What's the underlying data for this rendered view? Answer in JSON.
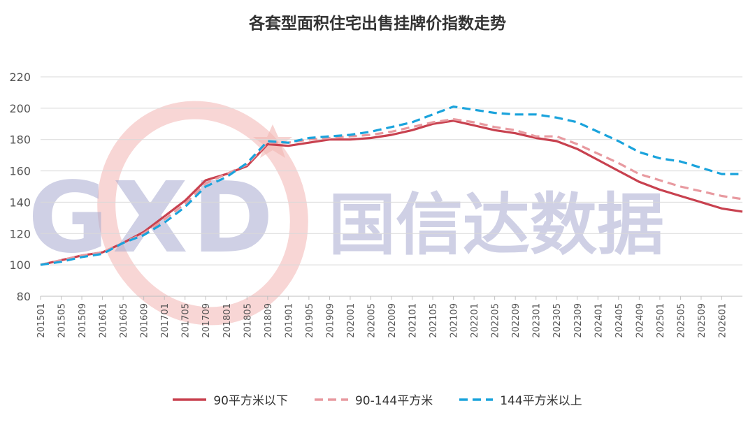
{
  "chart_data": {
    "type": "line",
    "title": "各套型面积住宅出售挂牌价指数走势",
    "xlabel": "",
    "ylabel": "",
    "ylim": [
      80,
      220
    ],
    "yticks": [
      80,
      100,
      120,
      140,
      160,
      180,
      200,
      220
    ],
    "grid": "horizontal",
    "legend_position": "bottom",
    "x_tick_labels": [
      "201501",
      "201505",
      "201509",
      "201601",
      "201605",
      "201609",
      "201701",
      "201705",
      "201709",
      "201801",
      "201805",
      "201809",
      "201901",
      "201905",
      "201909",
      "202001",
      "202005",
      "202009",
      "202101",
      "202105",
      "202109",
      "202201",
      "202205",
      "202209",
      "202301",
      "202305",
      "202309",
      "202401",
      "202405",
      "202409",
      "202501",
      "202505",
      "202509",
      "202601"
    ],
    "x": [
      "201501",
      "201505",
      "201509",
      "201601",
      "201605",
      "201609",
      "201701",
      "201705",
      "201709",
      "201801",
      "201805",
      "201809",
      "201901",
      "201905",
      "201909",
      "202001",
      "202005",
      "202009",
      "202101",
      "202105",
      "202109",
      "202201",
      "202205",
      "202209",
      "202301",
      "202305",
      "202309",
      "202401",
      "202405",
      "202409",
      "202501",
      "202505",
      "202509",
      "202601",
      "202602"
    ],
    "series": [
      {
        "name": "90平方米以下",
        "color": "#c8414f",
        "style": "solid",
        "values": [
          100,
          103,
          106,
          108,
          114,
          121,
          131,
          141,
          154,
          158,
          163,
          177,
          176,
          178,
          180,
          180,
          181,
          183,
          186,
          190,
          192,
          189,
          186,
          184,
          181,
          179,
          174,
          167,
          160,
          153,
          148,
          144,
          140,
          136,
          134
        ]
      },
      {
        "name": "90-144平方米",
        "color": "#e89aa0",
        "style": "dashed",
        "values": [
          100,
          103,
          106,
          108,
          114,
          120,
          129,
          139,
          152,
          158,
          164,
          178,
          178,
          180,
          181,
          182,
          183,
          185,
          188,
          191,
          193,
          191,
          188,
          186,
          182,
          182,
          177,
          171,
          165,
          158,
          154,
          150,
          147,
          144,
          142
        ]
      },
      {
        "name": "144平方米以上",
        "color": "#1aa3dc",
        "style": "dashed",
        "values": [
          100,
          102,
          105,
          107,
          114,
          119,
          127,
          137,
          150,
          156,
          165,
          179,
          178,
          181,
          182,
          183,
          185,
          188,
          191,
          196,
          201,
          199,
          197,
          196,
          196,
          194,
          191,
          185,
          179,
          172,
          168,
          166,
          162,
          158,
          158
        ]
      }
    ]
  },
  "watermark": {
    "logo_text": "GXD",
    "company_text": "国信达数据",
    "colors": {
      "logo": "#a8abd0",
      "ring": "#f2b5b3"
    }
  }
}
